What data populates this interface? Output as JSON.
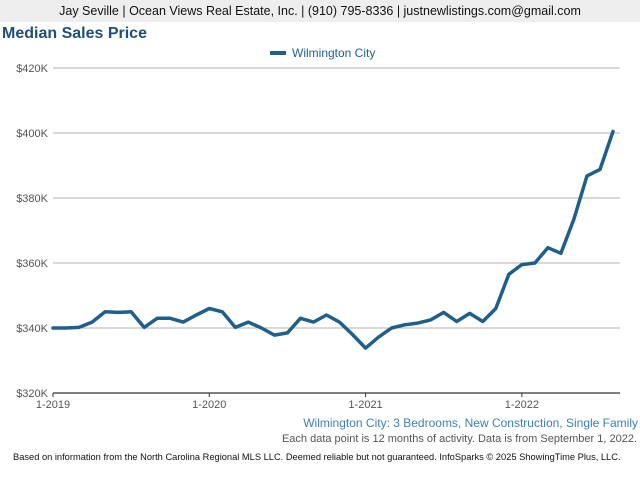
{
  "header": {
    "contact": "Jay Seville | Ocean Views Real Estate, Inc. | (910) 795-8336 | justnewlistings.com@gmail.com"
  },
  "footer": {
    "subtitle": "Wilmington City: 3 Bedrooms, New Construction, Single Family",
    "note": "Each data point is 12 months of activity. Data is from September 1, 2022.",
    "disclaimer": "Based on information from the North Carolina Regional MLS LLC. Deemed reliable but not guaranteed. InfoSparks © 2025 ShowingTime Plus, LLC."
  },
  "colors": {
    "series": "#1f5f8b",
    "title": "#1f4e79",
    "subtitle": "#3d7fb3"
  },
  "chart_data": {
    "type": "line",
    "title": "Median Sales Price",
    "xlabel": "",
    "ylabel": "",
    "ylim": [
      320000,
      420000
    ],
    "y_ticks": [
      {
        "value": 320000,
        "label": "$320K"
      },
      {
        "value": 340000,
        "label": "$340K"
      },
      {
        "value": 360000,
        "label": "$360K"
      },
      {
        "value": 380000,
        "label": "$380K"
      },
      {
        "value": 400000,
        "label": "$400K"
      },
      {
        "value": 420000,
        "label": "$420K"
      }
    ],
    "x_ticks": [
      {
        "index": 0,
        "label": "1-2019"
      },
      {
        "index": 12,
        "label": "1-2020"
      },
      {
        "index": 24,
        "label": "1-2021"
      },
      {
        "index": 36,
        "label": "1-2022"
      }
    ],
    "grid": "horizontal",
    "legend_position": "top",
    "x": [
      "1-2019",
      "2-2019",
      "3-2019",
      "4-2019",
      "5-2019",
      "6-2019",
      "7-2019",
      "8-2019",
      "9-2019",
      "10-2019",
      "11-2019",
      "12-2019",
      "1-2020",
      "2-2020",
      "3-2020",
      "4-2020",
      "5-2020",
      "6-2020",
      "7-2020",
      "8-2020",
      "9-2020",
      "10-2020",
      "11-2020",
      "12-2020",
      "1-2021",
      "2-2021",
      "3-2021",
      "4-2021",
      "5-2021",
      "6-2021",
      "7-2021",
      "8-2021",
      "9-2021",
      "10-2021",
      "11-2021",
      "12-2021",
      "1-2022",
      "2-2022",
      "3-2022",
      "4-2022",
      "5-2022",
      "6-2022",
      "7-2022",
      "8-2022"
    ],
    "series": [
      {
        "name": "Wilmington City",
        "values": [
          340000,
          340000,
          340200,
          341800,
          345000,
          344800,
          345000,
          340200,
          343000,
          343000,
          341800,
          344000,
          346000,
          345000,
          340200,
          341800,
          340000,
          337800,
          338500,
          343000,
          341800,
          344000,
          341800,
          338000,
          333800,
          337200,
          340000,
          341000,
          341500,
          342500,
          344800,
          342000,
          344500,
          342000,
          346000,
          356500,
          359500,
          360000,
          364700,
          363000,
          373500,
          386800,
          388800,
          400500
        ]
      }
    ]
  }
}
